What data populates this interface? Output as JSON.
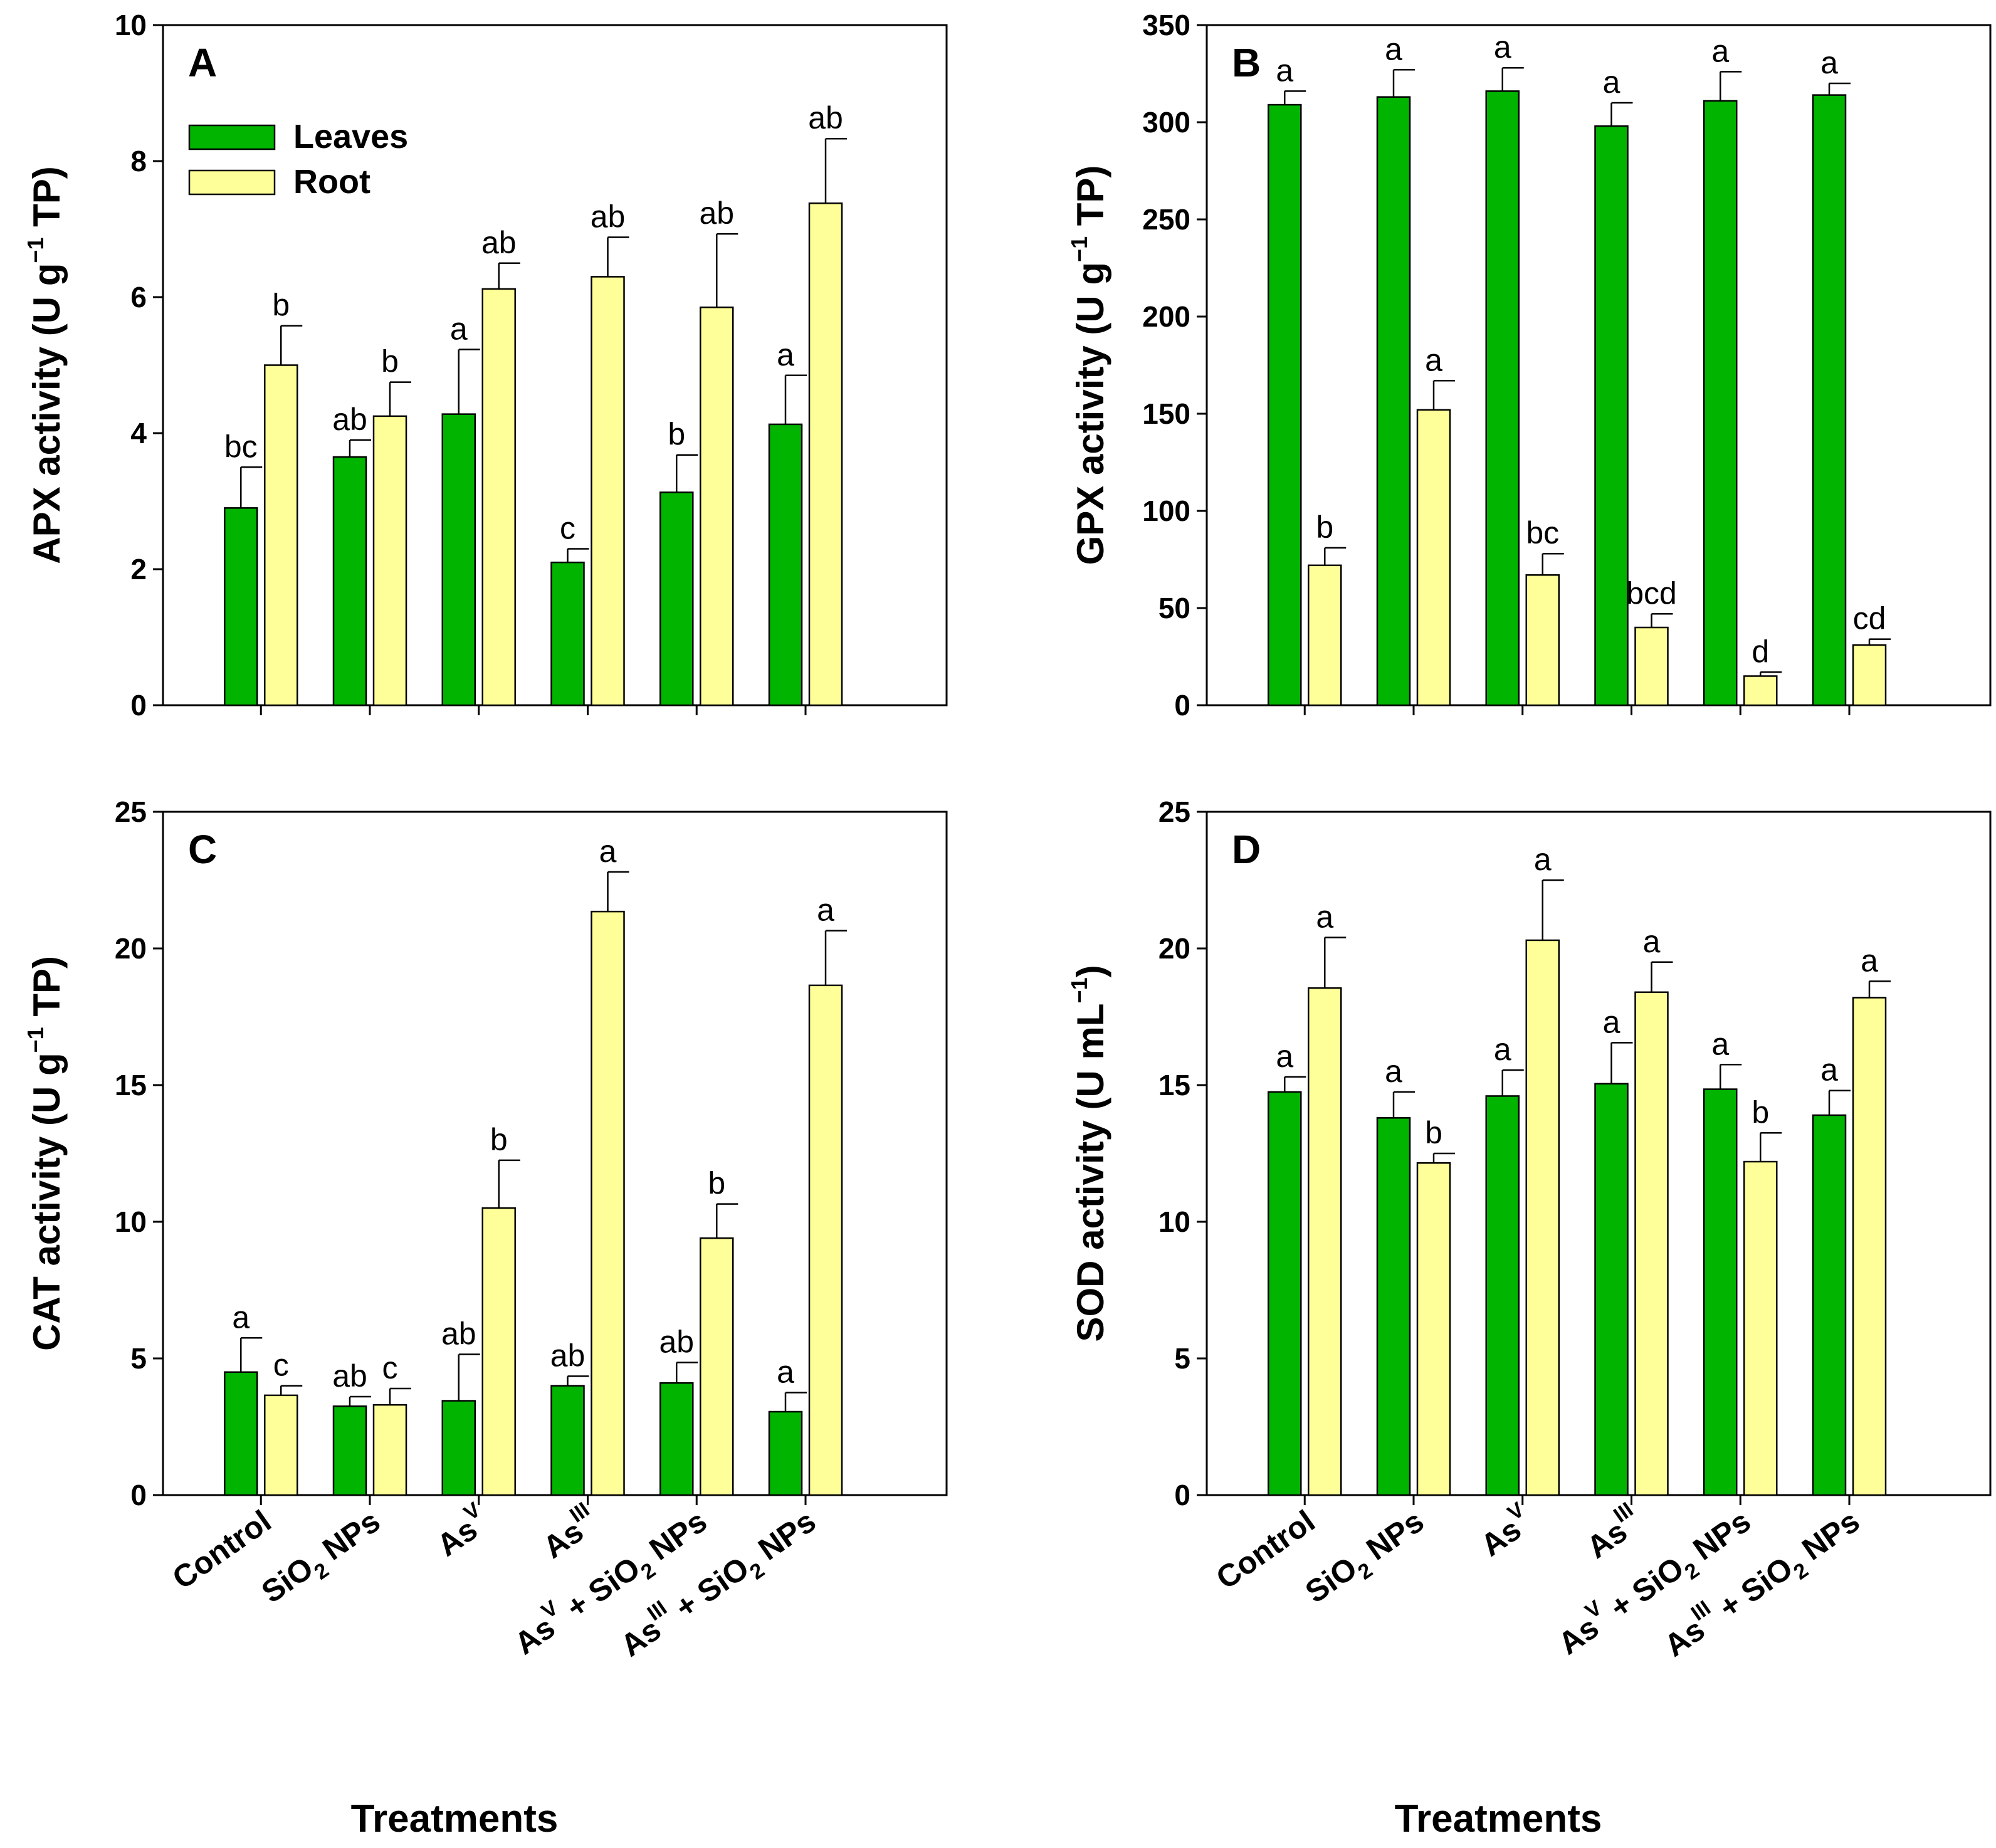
{
  "colors": {
    "leaves": "#00b400",
    "root": "#ffff99",
    "stroke": "#000000"
  },
  "legend": {
    "leaves": "Leaves",
    "root": "Root"
  },
  "x_title": "Treatments",
  "categories": [
    {
      "main": "Control",
      "sub": "",
      "sup": "",
      "rest": ""
    },
    {
      "main": "SiO",
      "sub": "2",
      "sup": "",
      "rest": " NPs"
    },
    {
      "main": "As",
      "sub": "",
      "sup": "V",
      "rest": ""
    },
    {
      "main": "As",
      "sub": "",
      "sup": "III",
      "rest": ""
    },
    {
      "main": "As",
      "sub": "",
      "sup": "V",
      "rest": " + SiO",
      "sub2": "2",
      "rest2": " NPs"
    },
    {
      "main": "As",
      "sub": "",
      "sup": "III",
      "rest": " + SiO",
      "sub2": "2",
      "rest2": " NPs"
    }
  ],
  "chart_data": [
    {
      "type": "bar",
      "panel": "A",
      "ylabel": "APX activity (U g⁻¹ TP)",
      "ylabel_parts": {
        "pre": "APX activity (U g",
        "sup": "−1",
        "post": " TP)"
      },
      "ylim": [
        0,
        10
      ],
      "yticks": [
        0,
        2,
        4,
        6,
        8,
        10
      ],
      "categories": [
        "Control",
        "SiO2 NPs",
        "AsV",
        "AsIII",
        "AsV + SiO2 NPs",
        "AsIII + SiO2 NPs"
      ],
      "series": [
        {
          "name": "Leaves",
          "values": [
            2.9,
            3.65,
            4.28,
            2.1,
            3.13,
            4.13
          ],
          "errors": [
            0.6,
            0.25,
            0.95,
            0.2,
            0.55,
            0.72
          ],
          "labels": [
            "bc",
            "ab",
            "a",
            "c",
            "b",
            "a"
          ]
        },
        {
          "name": "Root",
          "values": [
            5.0,
            4.25,
            6.12,
            6.3,
            5.85,
            7.38
          ],
          "errors": [
            0.58,
            0.5,
            0.38,
            0.58,
            1.08,
            0.95
          ],
          "labels": [
            "b",
            "b",
            "ab",
            "ab",
            "ab",
            "ab"
          ]
        }
      ]
    },
    {
      "type": "bar",
      "panel": "B",
      "ylabel": "GPX activity (U g⁻¹ TP)",
      "ylabel_parts": {
        "pre": "GPX activity (U g",
        "sup": "−1",
        "post": " TP)"
      },
      "ylim": [
        0,
        350
      ],
      "yticks": [
        0,
        50,
        100,
        150,
        200,
        250,
        300,
        350
      ],
      "categories": [
        "Control",
        "SiO2 NPs",
        "AsV",
        "AsIII",
        "AsV + SiO2 NPs",
        "AsIII + SiO2 NPs"
      ],
      "series": [
        {
          "name": "Leaves",
          "values": [
            309,
            313,
            316,
            298,
            311,
            314
          ],
          "errors": [
            7,
            14,
            12,
            12,
            15,
            6
          ],
          "labels": [
            "a",
            "a",
            "a",
            "a",
            "a",
            "a"
          ]
        },
        {
          "name": "Root",
          "values": [
            72,
            152,
            67,
            40,
            15,
            31
          ],
          "errors": [
            9,
            15,
            11,
            7,
            2,
            3
          ],
          "labels": [
            "b",
            "a",
            "bc",
            "bcd",
            "d",
            "cd"
          ]
        }
      ]
    },
    {
      "type": "bar",
      "panel": "C",
      "ylabel": "CAT activity (U g⁻¹ TP)",
      "ylabel_parts": {
        "pre": "CAT activity (U g",
        "sup": "−1",
        "post": " TP)"
      },
      "ylim": [
        0,
        25
      ],
      "yticks": [
        0,
        5,
        10,
        15,
        20,
        25
      ],
      "categories": [
        "Control",
        "SiO2 NPs",
        "AsV",
        "AsIII",
        "AsV + SiO2 NPs",
        "AsIII + SiO2 NPs"
      ],
      "series": [
        {
          "name": "Leaves",
          "values": [
            4.5,
            3.25,
            3.45,
            4.0,
            4.1,
            3.05
          ],
          "errors": [
            1.25,
            0.35,
            1.7,
            0.35,
            0.75,
            0.7
          ],
          "labels": [
            "a",
            "ab",
            "ab",
            "ab",
            "ab",
            "a"
          ]
        },
        {
          "name": "Root",
          "values": [
            3.65,
            3.3,
            10.5,
            21.35,
            9.4,
            18.65
          ],
          "errors": [
            0.35,
            0.6,
            1.75,
            1.45,
            1.25,
            2.0
          ],
          "labels": [
            "c",
            "c",
            "b",
            "a",
            "b",
            "a"
          ]
        }
      ]
    },
    {
      "type": "bar",
      "panel": "D",
      "ylabel": "SOD activity (U mL⁻¹)",
      "ylabel_parts": {
        "pre": "SOD activity (U mL",
        "sup": "−1",
        "post": ")"
      },
      "ylim": [
        0,
        25
      ],
      "yticks": [
        0,
        5,
        10,
        15,
        20,
        25
      ],
      "categories": [
        "Control",
        "SiO2 NPs",
        "AsV",
        "AsIII",
        "AsV + SiO2 NPs",
        "AsIII + SiO2 NPs"
      ],
      "series": [
        {
          "name": "Leaves",
          "values": [
            14.75,
            13.8,
            14.6,
            15.05,
            14.85,
            13.9
          ],
          "errors": [
            0.55,
            0.95,
            0.95,
            1.5,
            0.9,
            0.9
          ],
          "labels": [
            "a",
            "a",
            "a",
            "a",
            "a",
            "a"
          ]
        },
        {
          "name": "Root",
          "values": [
            18.55,
            12.15,
            20.3,
            18.4,
            12.2,
            18.2
          ],
          "errors": [
            1.85,
            0.35,
            2.2,
            1.1,
            1.05,
            0.6
          ],
          "labels": [
            "a",
            "b",
            "a",
            "a",
            "b",
            "a"
          ]
        }
      ]
    }
  ]
}
